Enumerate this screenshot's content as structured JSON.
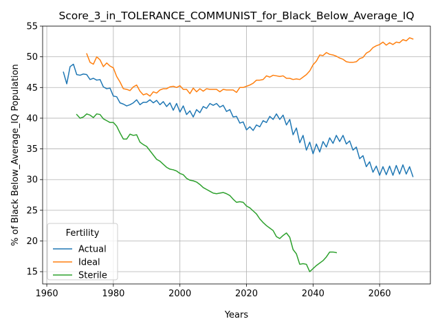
{
  "chart_data": {
    "type": "line",
    "title": "Score_3_in_TOLERANCE_COMMUNIST_for_Black_Below_Average_IQ",
    "xlabel": "Years",
    "ylabel": "% of Black Below_Average_IQ Population",
    "xlim": [
      1958.75,
      2075.25
    ],
    "ylim": [
      13.0,
      55.0
    ],
    "xticks": [
      1960,
      1980,
      2000,
      2020,
      2040,
      2060
    ],
    "yticks": [
      15,
      20,
      25,
      30,
      35,
      40,
      45,
      50,
      55
    ],
    "grid": true,
    "legend": {
      "title": "Fertility",
      "position": "lower-left"
    },
    "series": [
      {
        "name": "Actual",
        "color": "#1f77b4",
        "x": [
          1965,
          1966,
          1967,
          1968,
          1969,
          1970,
          1971,
          1972,
          1973,
          1974,
          1975,
          1976,
          1977,
          1978,
          1979,
          1980,
          1981,
          1982,
          1983,
          1984,
          1985,
          1986,
          1987,
          1988,
          1989,
          1990,
          1991,
          1992,
          1993,
          1994,
          1995,
          1996,
          1997,
          1998,
          1999,
          2000,
          2001,
          2002,
          2003,
          2004,
          2005,
          2006,
          2007,
          2008,
          2009,
          2010,
          2011,
          2012,
          2013,
          2014,
          2015,
          2016,
          2017,
          2018,
          2019,
          2020,
          2021,
          2022,
          2023,
          2024,
          2025,
          2026,
          2027,
          2028,
          2029,
          2030,
          2031,
          2032,
          2033,
          2034,
          2035,
          2036,
          2037,
          2038,
          2039,
          2040,
          2041,
          2042,
          2043,
          2044,
          2045,
          2046,
          2047,
          2048,
          2049,
          2050,
          2051,
          2052,
          2053,
          2054,
          2055,
          2056,
          2057,
          2058,
          2059,
          2060,
          2061,
          2062,
          2063,
          2064,
          2065,
          2066,
          2067,
          2068,
          2069,
          2070
        ],
        "y": [
          47.5,
          45.6,
          48.4,
          48.8,
          47.1,
          47.0,
          47.2,
          47.1,
          46.3,
          46.5,
          46.2,
          46.3,
          45.1,
          44.8,
          44.9,
          43.6,
          43.5,
          42.5,
          42.3,
          42.0,
          42.2,
          42.5,
          43.0,
          42.2,
          42.6,
          42.6,
          43.0,
          42.5,
          42.9,
          42.2,
          42.7,
          41.9,
          42.5,
          41.3,
          42.4,
          41.0,
          42.0,
          40.6,
          41.2,
          40.2,
          41.4,
          40.9,
          41.9,
          41.6,
          42.4,
          42.1,
          42.4,
          41.8,
          42.1,
          41.1,
          41.4,
          40.2,
          40.3,
          39.2,
          39.4,
          38.1,
          38.6,
          38.0,
          38.9,
          38.6,
          39.6,
          39.3,
          40.3,
          39.8,
          40.7,
          39.8,
          40.5,
          38.9,
          39.8,
          37.3,
          38.4,
          36.0,
          37.2,
          34.8,
          36.1,
          34.2,
          35.8,
          34.5,
          36.2,
          35.3,
          36.8,
          35.9,
          37.2,
          36.2,
          37.2,
          35.8,
          36.3,
          34.8,
          35.3,
          33.4,
          33.9,
          32.1,
          32.9,
          31.2,
          32.2,
          30.7,
          32.1,
          30.8,
          32.2,
          30.7,
          32.3,
          30.9,
          32.4,
          30.9,
          32.1,
          30.5
        ]
      },
      {
        "name": "Ideal",
        "color": "#ff7f0e",
        "x": [
          1972,
          1973,
          1974,
          1975,
          1976,
          1977,
          1978,
          1979,
          1980,
          1981,
          1982,
          1983,
          1984,
          1985,
          1986,
          1987,
          1988,
          1989,
          1990,
          1991,
          1992,
          1993,
          1994,
          1995,
          1996,
          1997,
          1998,
          1999,
          2000,
          2001,
          2002,
          2003,
          2004,
          2005,
          2006,
          2007,
          2008,
          2009,
          2010,
          2011,
          2012,
          2013,
          2014,
          2015,
          2016,
          2017,
          2018,
          2019,
          2020,
          2021,
          2022,
          2023,
          2024,
          2025,
          2026,
          2027,
          2028,
          2029,
          2030,
          2031,
          2032,
          2033,
          2034,
          2035,
          2036,
          2037,
          2038,
          2039,
          2040,
          2041,
          2042,
          2043,
          2044,
          2045,
          2046,
          2047,
          2048,
          2049,
          2050,
          2051,
          2052,
          2053,
          2054,
          2055,
          2056,
          2057,
          2058,
          2059,
          2060,
          2061,
          2062,
          2063,
          2064,
          2065,
          2066,
          2067,
          2068,
          2069,
          2070
        ],
        "y": [
          50.5,
          49.1,
          48.8,
          50.0,
          49.5,
          48.4,
          49.0,
          48.5,
          48.2,
          46.8,
          45.9,
          44.8,
          44.7,
          44.5,
          45.1,
          45.4,
          44.4,
          43.8,
          44.0,
          43.6,
          44.3,
          44.1,
          44.6,
          44.8,
          44.8,
          45.1,
          45.2,
          45.0,
          45.3,
          44.7,
          44.7,
          44.0,
          44.9,
          44.3,
          44.8,
          44.4,
          44.8,
          44.7,
          44.7,
          44.7,
          44.3,
          44.7,
          44.6,
          44.6,
          44.6,
          44.2,
          45.0,
          45.0,
          45.2,
          45.4,
          45.7,
          46.2,
          46.2,
          46.3,
          46.9,
          46.7,
          47.0,
          46.9,
          46.8,
          46.9,
          46.5,
          46.5,
          46.3,
          46.4,
          46.3,
          46.7,
          47.1,
          47.7,
          48.7,
          49.3,
          50.3,
          50.2,
          50.7,
          50.4,
          50.3,
          50.1,
          49.8,
          49.6,
          49.2,
          49.1,
          49.1,
          49.2,
          49.7,
          49.9,
          50.6,
          50.9,
          51.5,
          51.8,
          52.0,
          52.4,
          51.9,
          52.3,
          52.0,
          52.4,
          52.3,
          52.8,
          52.6,
          53.1,
          52.9
        ]
      },
      {
        "name": "Sterile",
        "color": "#2ca02c",
        "x": [
          1969,
          1970,
          1971,
          1972,
          1973,
          1974,
          1975,
          1976,
          1977,
          1978,
          1979,
          1980,
          1981,
          1982,
          1983,
          1984,
          1985,
          1986,
          1987,
          1988,
          1989,
          1990,
          1991,
          1992,
          1993,
          1994,
          1995,
          1996,
          1997,
          1998,
          1999,
          2000,
          2001,
          2002,
          2003,
          2004,
          2005,
          2006,
          2007,
          2008,
          2009,
          2010,
          2011,
          2012,
          2013,
          2014,
          2015,
          2016,
          2017,
          2018,
          2019,
          2020,
          2021,
          2022,
          2023,
          2024,
          2025,
          2026,
          2027,
          2028,
          2029,
          2030,
          2031,
          2032,
          2033,
          2034,
          2035,
          2036,
          2037,
          2038,
          2039,
          2040,
          2041,
          2042,
          2043,
          2044,
          2045,
          2046,
          2047
        ],
        "y": [
          40.6,
          40.0,
          40.2,
          40.7,
          40.5,
          40.1,
          40.7,
          40.6,
          39.9,
          39.6,
          39.3,
          39.3,
          38.7,
          37.6,
          36.6,
          36.6,
          37.4,
          37.2,
          37.3,
          36.1,
          35.7,
          35.4,
          34.7,
          34.0,
          33.3,
          33.0,
          32.5,
          32.0,
          31.7,
          31.6,
          31.4,
          31.0,
          30.8,
          30.2,
          29.9,
          29.8,
          29.6,
          29.2,
          28.7,
          28.4,
          28.1,
          27.8,
          27.7,
          27.8,
          27.9,
          27.7,
          27.4,
          26.8,
          26.3,
          26.4,
          26.3,
          25.7,
          25.4,
          24.9,
          24.4,
          23.6,
          23.0,
          22.5,
          22.1,
          21.7,
          20.7,
          20.4,
          20.9,
          21.3,
          20.6,
          18.6,
          17.9,
          16.2,
          16.3,
          16.2,
          15.0,
          15.5,
          16.0,
          16.4,
          16.8,
          17.4,
          18.2,
          18.2,
          18.1
        ]
      }
    ]
  }
}
